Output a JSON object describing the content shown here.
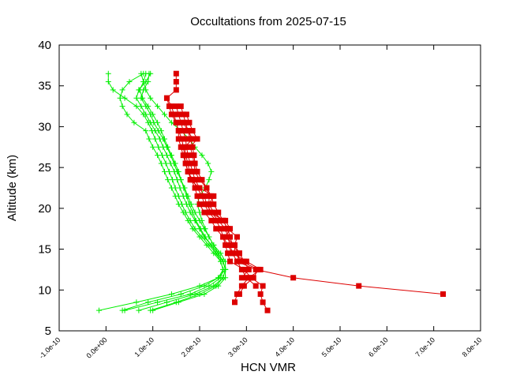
{
  "chart_data": {
    "type": "line",
    "title": "Occultations from 2025-07-15",
    "xlabel": "HCN VMR",
    "ylabel": "Altitude (km)",
    "xlim": [
      -1e-10,
      8e-10
    ],
    "ylim": [
      5,
      40
    ],
    "x_ticks": [
      "-1.0e-10",
      "0.0e+00",
      "1.0e-10",
      "2.0e-10",
      "3.0e-10",
      "4.0e-10",
      "5.0e-10",
      "6.0e-10",
      "7.0e-10",
      "8.0e-10"
    ],
    "y_ticks": [
      "5",
      "10",
      "15",
      "20",
      "25",
      "30",
      "35",
      "40"
    ],
    "grid": false,
    "legend": "none",
    "colors": {
      "green_series": "#00ee00",
      "red_series": "#dd0000"
    },
    "green_profiles": [
      {
        "altitude": [
          7.5,
          8.5,
          9.5,
          10.5,
          11.5,
          12.5,
          13.5,
          14.5,
          15.5,
          16.5,
          17.5,
          18.5,
          19.5,
          20.5,
          21.5,
          22.5,
          23.5,
          24.5,
          25.5,
          26.5,
          27.5,
          28.5,
          29.5,
          30.5,
          31.5,
          32.5,
          33.5,
          34.5,
          35.5,
          36.5
        ],
        "vmr": [
          -1.5e-11,
          6.5e-11,
          1.4e-10,
          2e-10,
          2.4e-10,
          2.55e-10,
          2.5e-10,
          2.35e-10,
          2.2e-10,
          2.05e-10,
          1.9e-10,
          1.8e-10,
          1.7e-10,
          1.62e-10,
          1.55e-10,
          1.48e-10,
          1.42e-10,
          1.35e-10,
          1.28e-10,
          1.2e-10,
          1.12e-10,
          1.05e-10,
          9.8e-11,
          9e-11,
          8e-11,
          6.5e-11,
          4e-11,
          1.5e-11,
          5e-12,
          5e-12
        ]
      },
      {
        "altitude": [
          7.5,
          8.5,
          9.5,
          10.5,
          11.5,
          12.5,
          13.5,
          14.5,
          15.5,
          16.5,
          17.5,
          18.5,
          19.5,
          20.5,
          21.5,
          22.5,
          23.5,
          24.5,
          25.5,
          26.5,
          27.5,
          28.5,
          29.5,
          30.5,
          31.5,
          32.5,
          33.5,
          34.5,
          35.5,
          36.5
        ],
        "vmr": [
          4e-11,
          1.1e-10,
          1.8e-10,
          2.2e-10,
          2.45e-10,
          2.5e-10,
          2.45e-10,
          2.3e-10,
          2.15e-10,
          2e-10,
          1.85e-10,
          1.75e-10,
          1.65e-10,
          1.55e-10,
          1.48e-10,
          1.4e-10,
          1.32e-10,
          1.25e-10,
          1.18e-10,
          1.1e-10,
          1e-10,
          9.2e-11,
          8.5e-11,
          6e-11,
          4.5e-11,
          3.5e-11,
          3e-11,
          3.5e-11,
          5e-11,
          8e-11
        ]
      },
      {
        "altitude": [
          7.5,
          8.5,
          9.5,
          10.5,
          11.5,
          12.5,
          13.5,
          14.5,
          15.5,
          16.5,
          17.5,
          18.5,
          19.5,
          20.5,
          21.5,
          22.5,
          23.5,
          24.5,
          25.5,
          26.5,
          27.5,
          28.5,
          29.5,
          30.5,
          31.5,
          32.5,
          33.5,
          34.5,
          35.5,
          36.5
        ],
        "vmr": [
          7e-11,
          1.3e-10,
          1.9e-10,
          2.3e-10,
          2.5e-10,
          2.55e-10,
          2.5e-10,
          2.4e-10,
          2.25e-10,
          2.1e-10,
          2e-10,
          1.9e-10,
          1.8e-10,
          1.72e-10,
          1.65e-10,
          1.58e-10,
          1.52e-10,
          1.46e-10,
          1.38e-10,
          1.3e-10,
          1.22e-10,
          1.15e-10,
          1.05e-10,
          9.5e-11,
          8.5e-11,
          7.5e-11,
          6.5e-11,
          7e-11,
          8.5e-11,
          9.5e-11
        ]
      },
      {
        "altitude": [
          7.5,
          8.5,
          9.5,
          10.5,
          11.5,
          12.5,
          13.5,
          14.5,
          15.5,
          16.5,
          17.5,
          18.5,
          19.5,
          20.5,
          21.5,
          22.5,
          23.5,
          24.5,
          25.5,
          26.5,
          27.5,
          28.5,
          29.5,
          30.5,
          31.5,
          32.5,
          33.5,
          34.5,
          35.5,
          36.5
        ],
        "vmr": [
          9.5e-11,
          1.5e-10,
          2e-10,
          2.35e-10,
          2.5e-10,
          2.55e-10,
          2.55e-10,
          2.45e-10,
          2.3e-10,
          2.2e-10,
          2.1e-10,
          2e-10,
          1.9e-10,
          1.82e-10,
          1.75e-10,
          1.68e-10,
          1.6e-10,
          1.52e-10,
          1.45e-10,
          1.38e-10,
          1.3e-10,
          1.22e-10,
          1.12e-10,
          1.02e-10,
          9.5e-11,
          8.5e-11,
          7.5e-11,
          8e-11,
          9e-11,
          9.2e-11
        ]
      },
      {
        "altitude": [
          7.5,
          8.5,
          9.5,
          10.5,
          11.5,
          12.5,
          13.5,
          14.5,
          15.5,
          16.5,
          17.5,
          18.5,
          19.5,
          20.5,
          21.5,
          22.5,
          23.5,
          24.5,
          25.5,
          26.5,
          27.5,
          28.5,
          29.5,
          30.5,
          31.5,
          32.5,
          33.5,
          34.5,
          35.5,
          36.5
        ],
        "vmr": [
          3.5e-11,
          9e-11,
          1.6e-10,
          2.1e-10,
          2.4e-10,
          2.5e-10,
          2.45e-10,
          2.35e-10,
          2.25e-10,
          2.12e-10,
          2.02e-10,
          1.92e-10,
          1.85e-10,
          1.78e-10,
          1.72e-10,
          1.66e-10,
          1.6e-10,
          1.55e-10,
          1.48e-10,
          1.4e-10,
          1.32e-10,
          1.25e-10,
          1.18e-10,
          1.1e-10,
          1e-10,
          9e-11,
          7.8e-11,
          7.2e-11,
          8e-11,
          8.5e-11
        ]
      },
      {
        "altitude": [
          7.5,
          8.5,
          9.5,
          10.5,
          11.5,
          12.5,
          13.5,
          14.5,
          15.5,
          16.5,
          17.5,
          18.5,
          19.5,
          20.5,
          21.5,
          22.5,
          23.5,
          24.5,
          25.5,
          26.5,
          27.5,
          28.5,
          29.5,
          30.5,
          31.5,
          32.5,
          33.5,
          34.5,
          35.5,
          36.5
        ],
        "vmr": [
          1e-10,
          1.55e-10,
          2.1e-10,
          2.4e-10,
          2.55e-10,
          2.55e-10,
          2.5e-10,
          2.4e-10,
          2.3e-10,
          2.2e-10,
          2.12e-10,
          2.05e-10,
          2e-10,
          1.95e-10,
          2e-10,
          2.12e-10,
          2.2e-10,
          2.25e-10,
          2.18e-10,
          2.05e-10,
          1.9e-10,
          1.78e-10,
          1.6e-10,
          1.4e-10,
          1.25e-10,
          1.1e-10,
          9.5e-11,
          8.5e-11,
          8e-11,
          7.5e-11
        ]
      }
    ],
    "red_profiles": [
      {
        "altitude": [
          7.5,
          8.5,
          9.5,
          10.5,
          11.5,
          12.5,
          13.5,
          14.5,
          15.5,
          16.5,
          17.5,
          18.5,
          19.5,
          20.5,
          21.5,
          22.5,
          23.5,
          24.5,
          25.5,
          26.5,
          27.5,
          28.5,
          29.5,
          30.5,
          31.5,
          32.5,
          33.5,
          34.5,
          35.5,
          36.5
        ],
        "vmr": [
          3.45e-10,
          3.35e-10,
          3.3e-10,
          3.35e-10,
          3.1e-10,
          2.95e-10,
          2.65e-10,
          2.6e-10,
          2.55e-10,
          2.5e-10,
          2.35e-10,
          2.25e-10,
          2.1e-10,
          2e-10,
          1.95e-10,
          1.9e-10,
          1.82e-10,
          1.75e-10,
          1.7e-10,
          1.65e-10,
          1.6e-10,
          1.55e-10,
          1.55e-10,
          1.5e-10,
          1.45e-10,
          1.4e-10,
          1.3e-10,
          1.5e-10,
          1.5e-10,
          1.5e-10
        ]
      },
      {
        "altitude": [
          8.5,
          9.5,
          10.5,
          11.5,
          12.5,
          13.5,
          14.5,
          15.5,
          16.5,
          17.5,
          18.5,
          19.5,
          20.5,
          21.5,
          22.5,
          23.5,
          24.5,
          25.5,
          26.5,
          27.5,
          28.5,
          29.5,
          30.5,
          31.5,
          32.5
        ],
        "vmr": [
          2.75e-10,
          2.8e-10,
          2.9e-10,
          3.05e-10,
          3.3e-10,
          3e-10,
          2.7e-10,
          2.65e-10,
          2.6e-10,
          2.55e-10,
          2.4e-10,
          2.25e-10,
          2.15e-10,
          2.1e-10,
          2e-10,
          1.9e-10,
          1.85e-10,
          1.8e-10,
          1.75e-10,
          1.72e-10,
          1.7e-10,
          1.65e-10,
          1.6e-10,
          1.55e-10,
          1.5e-10
        ]
      },
      {
        "altitude": [
          9.5,
          10.5,
          11.5,
          12.5,
          13.5,
          14.5,
          15.5,
          16.5,
          17.5,
          18.5,
          19.5,
          20.5,
          21.5,
          22.5,
          23.5,
          24.5,
          25.5,
          26.5,
          27.5,
          28.5,
          29.5,
          30.5,
          31.5,
          32.5
        ],
        "vmr": [
          2.85e-10,
          2.95e-10,
          3.15e-10,
          3.25e-10,
          2.9e-10,
          2.75e-10,
          2.75e-10,
          2.8e-10,
          2.6e-10,
          2.5e-10,
          2.3e-10,
          2.2e-10,
          2.2e-10,
          2.15e-10,
          2.05e-10,
          1.95e-10,
          1.9e-10,
          1.88e-10,
          1.85e-10,
          1.8e-10,
          1.75e-10,
          1.7e-10,
          1.65e-10,
          1.6e-10
        ]
      },
      {
        "altitude": [
          9.5,
          10.5,
          11.5,
          12.5,
          13.5,
          14.5,
          15.5,
          16.5,
          17.5,
          18.5,
          19.5,
          20.5,
          21.5,
          22.5,
          23.5,
          24.5,
          25.5,
          26.5,
          27.5,
          28.5,
          29.5,
          30.5,
          31.5,
          32.5,
          33.5
        ],
        "vmr": [
          7.2e-10,
          5.4e-10,
          4e-10,
          3.2e-10,
          2.8e-10,
          2.7e-10,
          2.6e-10,
          2.5e-10,
          2.45e-10,
          2.35e-10,
          2.2e-10,
          2.1e-10,
          2.05e-10,
          1.95e-10,
          1.85e-10,
          1.75e-10,
          1.7e-10,
          1.68e-10,
          1.65e-10,
          1.62e-10,
          1.55e-10,
          1.5e-10,
          1.4e-10,
          1.35e-10,
          1.3e-10
        ]
      },
      {
        "altitude": [
          10.5,
          11.5,
          12.5,
          13.5,
          14.5,
          15.5,
          16.5,
          17.5,
          18.5,
          19.5,
          20.5,
          21.5,
          22.5,
          23.5,
          24.5,
          25.5,
          26.5,
          27.5,
          28.5,
          29.5,
          30.5,
          31.5
        ],
        "vmr": [
          3.2e-10,
          3e-10,
          2.9e-10,
          2.8e-10,
          2.85e-10,
          2.7e-10,
          2.65e-10,
          2.6e-10,
          2.5e-10,
          2.4e-10,
          2.3e-10,
          2.25e-10,
          2.15e-10,
          2e-10,
          1.9e-10,
          1.88e-10,
          1.85e-10,
          1.8e-10,
          1.95e-10,
          1.85e-10,
          1.78e-10,
          1.72e-10
        ]
      },
      {
        "altitude": [
          11.5,
          12.5,
          13.5,
          14.5,
          15.5,
          16.5,
          17.5,
          18.5,
          19.5,
          20.5,
          21.5,
          22.5,
          23.5,
          24.5,
          25.5,
          26.5,
          27.5,
          28.5,
          29.5,
          30.5
        ],
        "vmr": [
          2.9e-10,
          3.05e-10,
          2.95e-10,
          2.85e-10,
          2.75e-10,
          2.55e-10,
          2.65e-10,
          2.55e-10,
          2.2e-10,
          2.2e-10,
          2.3e-10,
          2e-10,
          1.8e-10,
          1.78e-10,
          1.75e-10,
          1.7e-10,
          1.68e-10,
          1.85e-10,
          1.75e-10,
          1.65e-10
        ]
      }
    ]
  }
}
